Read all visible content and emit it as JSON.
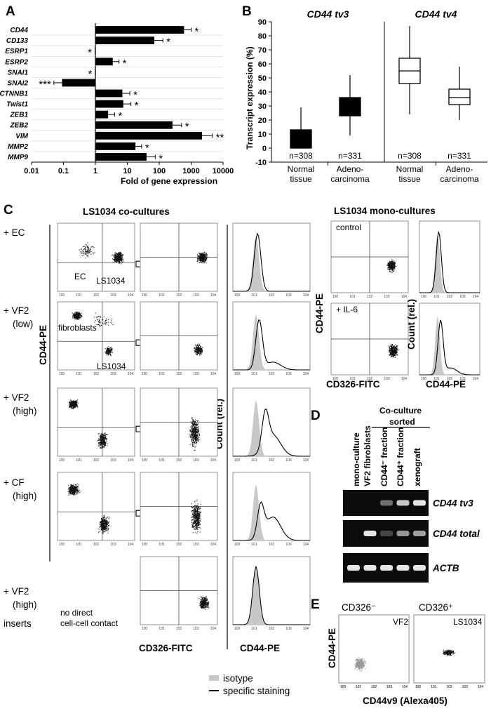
{
  "panel_labels": {
    "a": "A",
    "b": "B",
    "c": "C",
    "d": "D",
    "e": "E"
  },
  "panel_a": {
    "chart_data": {
      "type": "bar",
      "orientation": "horizontal",
      "x_scale": "log",
      "categories": [
        "CD44",
        "CD133",
        "ESRP1",
        "ESRP2",
        "SNAI1",
        "SNAI2",
        "CTNNB1",
        "Twist1",
        "ZEB1",
        "ZEB2",
        "VIM",
        "MMP2",
        "MMP9"
      ],
      "values": [
        600,
        70,
        0.95,
        3.5,
        0.97,
        0.09,
        7,
        7.5,
        2.5,
        260,
        2200,
        18,
        40
      ],
      "errors": [
        1000,
        130,
        0.98,
        5.5,
        0.99,
        0.05,
        12,
        13,
        4,
        500,
        4600,
        28,
        75
      ],
      "significance": [
        "*",
        "*",
        "*",
        "*",
        "*",
        "***",
        "*",
        "*",
        "*",
        "*",
        "**",
        "*",
        "*"
      ],
      "xlabel": "Fold of gene expression",
      "xticks": [
        "0.01",
        "0.1",
        "1",
        "10",
        "100",
        "1000",
        "10000"
      ],
      "xlim": [
        0.01,
        10000
      ]
    }
  },
  "panel_b": {
    "chart_data": {
      "type": "boxplot",
      "ylabel": "Transcript expression (%)",
      "ylim": [
        -10,
        90
      ],
      "yticks": [
        "-10",
        "0",
        "10",
        "20",
        "30",
        "40",
        "50",
        "60",
        "70",
        "80",
        "90"
      ],
      "groups": [
        "Normal tissue",
        "Adeno- carcinoma"
      ],
      "panels": [
        {
          "title": "CD44 tv3",
          "color": "#000000",
          "boxes": [
            {
              "group": "Normal tissue",
              "n": "n=308",
              "min": 0,
              "q1": 0,
              "median": 3,
              "q3": 13,
              "max": 29
            },
            {
              "group": "Adenocarcinoma",
              "n": "n=331",
              "min": 9,
              "q1": 23,
              "median": 29,
              "q3": 36,
              "max": 52
            }
          ]
        },
        {
          "title": "CD44 tv4",
          "color": "#ffffff",
          "boxes": [
            {
              "group": "Normal tissue",
              "n": "n=308",
              "min": 24,
              "q1": 46,
              "median": 55,
              "q3": 64,
              "max": 87
            },
            {
              "group": "Adenocarcinoma",
              "n": "n=331",
              "min": 20,
              "q1": 31,
              "median": 36,
              "q3": 42,
              "max": 58
            }
          ]
        }
      ],
      "xlabels": [
        [
          "Normal",
          "tissue"
        ],
        [
          "Adeno-",
          "carcinoma"
        ],
        [
          "Normal",
          "tissue"
        ],
        [
          "Adeno-",
          "carcinoma"
        ]
      ]
    }
  },
  "panel_c": {
    "co_title": "LS1034 co-cultures",
    "mono_title": "LS1034 mono-cultures",
    "rows": [
      {
        "l1": "+ EC",
        "l2": ""
      },
      {
        "l1": "+ VF2",
        "l2": "(low)"
      },
      {
        "l1": "+ VF2",
        "l2": "(high)"
      },
      {
        "l1": "+ CF",
        "l2": "(high)"
      },
      {
        "l1": "+ VF2",
        "l2": "(high)"
      }
    ],
    "inserts_label": "inserts",
    "no_contact": [
      "no direct",
      "cell-cell contact"
    ],
    "ylabel": "CD44-PE",
    "count_label": "Count (rel.)",
    "xlabel_fitc": "CD326-FITC",
    "xlabel_pe": "CD44-PE",
    "annotations": {
      "ec": "EC",
      "ls1": "LS1034",
      "fib": "fibroblasts",
      "ls2": "LS1034"
    },
    "mono": {
      "control": "control",
      "il6": "+ IL-6",
      "ylabel": "CD44-PE",
      "count": "Count (rel.)",
      "xfitc": "CD326-FITC",
      "xpe": "CD44-PE"
    },
    "legend": {
      "isotype": "isotype",
      "specific": "specific staining"
    }
  },
  "panel_d": {
    "header": [
      "Co-culture",
      "sorted"
    ],
    "lanes": [
      "mono-culture",
      "VF2 fibroblasts",
      "CD44⁻ fraction",
      "CD44⁺ fraction",
      "xenograft"
    ],
    "rows": [
      "CD44 tv3",
      "CD44 total",
      "ACTB"
    ],
    "band_intensity": [
      [
        0,
        0,
        0.35,
        0.8,
        0.95
      ],
      [
        0,
        0.95,
        0.15,
        0.55,
        0.6
      ],
      [
        0.95,
        0.95,
        0.95,
        0.95,
        0.95
      ]
    ]
  },
  "panel_e": {
    "left_title": "CD326⁻",
    "right_title": "CD326⁺",
    "left_label": "VF2",
    "right_label": "LS1034",
    "ylabel": "CD44-PE",
    "xlabel": "CD44v9 (Alexa405)"
  }
}
